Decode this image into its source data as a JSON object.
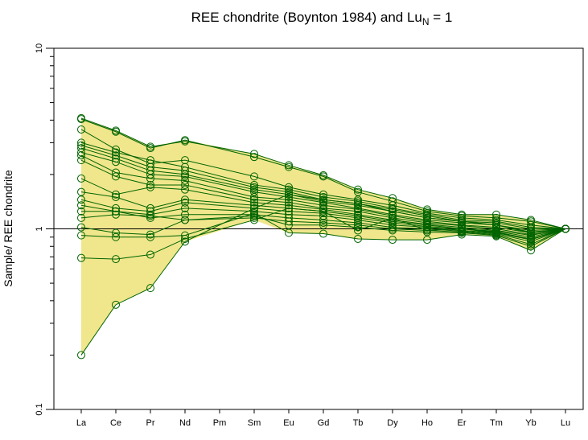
{
  "chart_data": {
    "type": "line",
    "title_prefix": "REE chondrite (Boynton 1984) and Lu",
    "title_sub": "N",
    "title_suffix": " = 1",
    "ylabel": "Sample/ REE chondrite",
    "xlabel": "",
    "y_scale": "log",
    "ylim": [
      0.1,
      10
    ],
    "y_ticks": [
      "0.1",
      "1",
      "10"
    ],
    "categories": [
      "La",
      "Ce",
      "Pr",
      "Nd",
      "Pm",
      "Sm",
      "Eu",
      "Gd",
      "Tb",
      "Dy",
      "Ho",
      "Er",
      "Tm",
      "Yb",
      "Lu"
    ],
    "reference_line": 1,
    "envelope_color": "#f0e68c",
    "series_color": "#006400",
    "series": [
      {
        "values": [
          4.1,
          3.5,
          2.85,
          3.05,
          null,
          2.6,
          2.25,
          1.98,
          1.65,
          1.48,
          1.28,
          1.2,
          1.2,
          1.12,
          1
        ]
      },
      {
        "values": [
          4.05,
          3.45,
          2.8,
          3.1,
          null,
          2.5,
          2.2,
          1.95,
          1.6,
          1.42,
          1.25,
          1.18,
          1.15,
          1.1,
          1
        ]
      },
      {
        "values": [
          3.55,
          2.75,
          2.3,
          2.4,
          null,
          1.95,
          1.7,
          1.55,
          1.45,
          1.35,
          1.22,
          1.15,
          1.12,
          1.05,
          1
        ]
      },
      {
        "values": [
          3.0,
          2.65,
          2.4,
          2.2,
          null,
          1.75,
          1.65,
          1.5,
          1.42,
          1.3,
          1.2,
          1.12,
          1.1,
          1.02,
          1
        ]
      },
      {
        "values": [
          2.9,
          2.55,
          2.2,
          2.1,
          null,
          1.7,
          1.6,
          1.45,
          1.38,
          1.28,
          1.18,
          1.1,
          1.08,
          1.0,
          1
        ]
      },
      {
        "values": [
          2.8,
          2.45,
          2.1,
          2.0,
          null,
          1.65,
          1.55,
          1.42,
          1.35,
          1.25,
          1.15,
          1.1,
          1.05,
          0.98,
          1
        ]
      },
      {
        "values": [
          2.65,
          2.35,
          2.0,
          1.95,
          null,
          1.6,
          1.5,
          1.4,
          1.3,
          1.2,
          1.12,
          1.08,
          1.05,
          0.96,
          1
        ]
      },
      {
        "values": [
          2.55,
          2.05,
          1.9,
          1.85,
          null,
          1.5,
          1.45,
          1.35,
          1.28,
          1.18,
          1.1,
          1.05,
          1.02,
          0.95,
          1
        ]
      },
      {
        "values": [
          2.4,
          1.95,
          1.75,
          1.75,
          null,
          1.45,
          1.4,
          1.3,
          1.25,
          1.15,
          1.08,
          1.04,
          1.0,
          0.93,
          1
        ]
      },
      {
        "values": [
          1.9,
          1.55,
          1.7,
          1.65,
          null,
          1.4,
          1.35,
          1.28,
          1.2,
          1.12,
          1.06,
          1.02,
          0.98,
          0.92,
          1
        ]
      },
      {
        "values": [
          1.6,
          1.5,
          1.3,
          1.45,
          null,
          1.35,
          1.3,
          1.25,
          1.18,
          1.1,
          1.05,
          1.0,
          0.97,
          0.9,
          1
        ]
      },
      {
        "values": [
          1.45,
          1.3,
          1.25,
          1.4,
          null,
          1.3,
          1.25,
          1.22,
          1.15,
          1.08,
          1.03,
          1.0,
          0.95,
          0.88,
          1
        ]
      },
      {
        "values": [
          1.35,
          1.25,
          1.2,
          1.3,
          null,
          1.25,
          1.2,
          1.18,
          1.12,
          1.05,
          1.02,
          0.98,
          0.95,
          0.87,
          1
        ]
      },
      {
        "values": [
          1.25,
          1.25,
          1.15,
          1.2,
          null,
          1.2,
          1.15,
          1.12,
          1.08,
          1.02,
          1.0,
          0.97,
          0.94,
          0.85,
          1
        ]
      },
      {
        "values": [
          1.15,
          1.2,
          1.18,
          1.12,
          null,
          1.15,
          1.1,
          1.08,
          1.05,
          1.0,
          0.98,
          0.96,
          0.93,
          0.82,
          1
        ]
      },
      {
        "values": [
          1.02,
          0.95,
          0.93,
          1.12,
          null,
          1.18,
          1.05,
          1.05,
          1.02,
          0.98,
          0.96,
          0.95,
          0.92,
          0.8,
          1
        ]
      },
      {
        "values": [
          0.92,
          0.9,
          0.9,
          0.92,
          null,
          1.22,
          0.95,
          0.94,
          0.88,
          0.87,
          0.87,
          0.93,
          0.91,
          0.76,
          1
        ]
      },
      {
        "values": [
          0.69,
          0.68,
          0.72,
          0.88,
          null,
          1.12,
          1.3,
          1.25,
          0.98,
          1.15,
          0.98,
          1.0,
          0.96,
          0.88,
          1
        ]
      },
      {
        "values": [
          0.2,
          0.38,
          0.47,
          0.85,
          null,
          1.3,
          1.55,
          1.45,
          1.38,
          1.25,
          1.15,
          1.1,
          1.05,
          0.95,
          1
        ]
      }
    ]
  }
}
